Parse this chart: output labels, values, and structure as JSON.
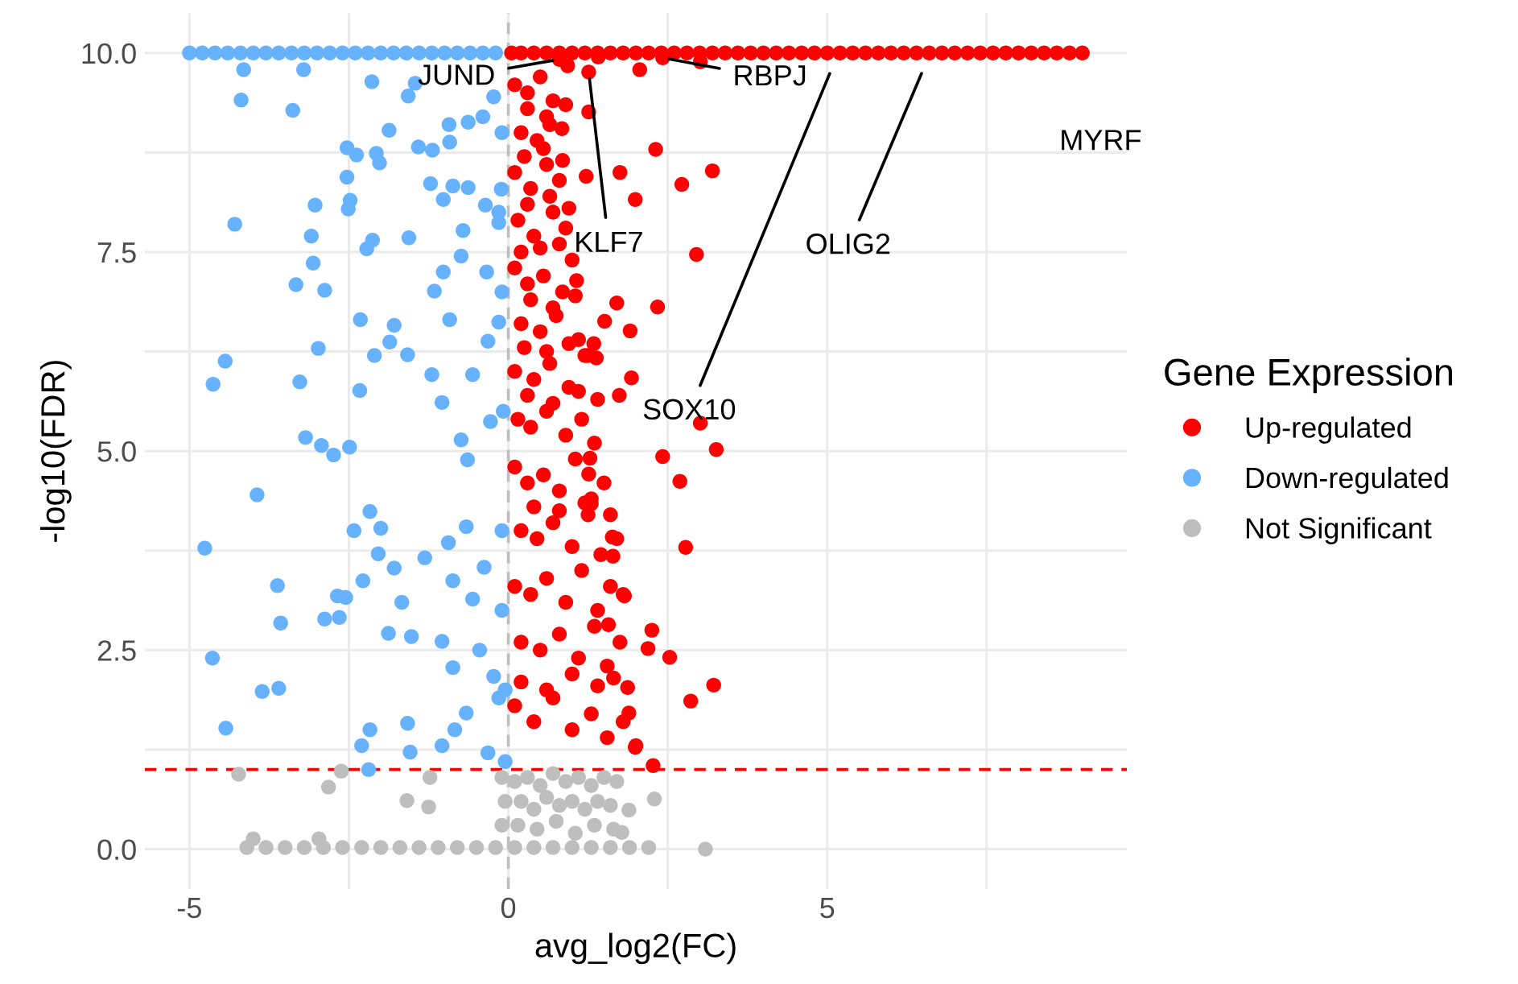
{
  "chart_data": {
    "type": "scatter",
    "xlabel": "avg_log2(FC)",
    "ylabel": "-log10(FDR)",
    "legend_title": "Gene Expression",
    "legend": "right",
    "grid": true,
    "marker": "circle",
    "xlim": [
      -5.7,
      9.7
    ],
    "ylim": [
      -0.5,
      10.5
    ],
    "xticks": [
      -5,
      {
        "value": -2.5,
        "label": null
      },
      0,
      {
        "value": 2.5,
        "label": null
      },
      5,
      {
        "value": 7.5,
        "label": null
      }
    ],
    "yticks": [
      {
        "value": 0,
        "label": "0.0"
      },
      {
        "value": 1.25,
        "label": null
      },
      {
        "value": 2.5,
        "label": "2.5"
      },
      {
        "value": 3.75,
        "label": null
      },
      {
        "value": 5,
        "label": "5.0"
      },
      {
        "value": 6.25,
        "label": null
      },
      {
        "value": 7.5,
        "label": "7.5"
      },
      {
        "value": 8.75,
        "label": null
      },
      {
        "value": 10,
        "label": "10.0"
      }
    ],
    "ref_lines": [
      {
        "axis": "x",
        "value": 0,
        "color": "#bebebe",
        "line_style": "dashed"
      },
      {
        "axis": "y",
        "value": 1,
        "color": "#ff0000",
        "line_style": "dashed"
      }
    ],
    "annotations": [
      {
        "text": "JUND",
        "x": 0.8,
        "y": 9.92
      },
      {
        "text": "RBPJ",
        "x": 2.42,
        "y": 9.94
      },
      {
        "text": "KLF7",
        "x": 1.26,
        "y": 9.76
      },
      {
        "text": "SOX10",
        "x": 5.08,
        "y": 9.82
      },
      {
        "text": "OLIG2",
        "x": 6.52,
        "y": 9.82
      },
      {
        "text": "MYRF",
        "x": 8.2,
        "y": 10.0
      }
    ],
    "series": [
      {
        "name": "Up-regulated",
        "color": "#ff0000",
        "x": [
          0.05,
          0.2,
          0.4,
          0.6,
          0.8,
          1.0,
          1.2,
          1.4,
          1.6,
          1.8,
          2.0,
          2.2,
          2.4,
          2.6,
          2.8,
          3.0,
          3.2,
          3.4,
          3.6,
          3.8,
          4.0,
          4.2,
          4.4,
          4.6,
          4.8,
          5.0,
          5.2,
          5.4,
          5.6,
          5.8,
          6.0,
          6.2,
          6.4,
          6.6,
          6.8,
          7.0,
          7.2,
          7.4,
          7.6,
          7.8,
          8.0,
          8.2,
          8.4,
          8.6,
          8.8,
          9.0,
          0.93,
          1.41,
          2.06,
          3.01,
          1.26,
          2.31,
          1.22,
          1.75,
          2.72,
          3.2,
          1.99,
          2.95,
          1.7,
          2.34,
          1.51,
          1.91,
          1.34,
          1.38,
          1.93,
          1.74,
          3.01,
          0.84,
          1.07,
          3.26,
          2.42,
          2.69,
          2.78,
          1.63,
          1.64,
          1.82,
          2.25,
          2.19,
          2.53,
          3.22,
          2.86,
          2.27,
          1.99,
          1.87,
          1.89,
          1.57,
          1.28,
          1.26,
          1.3,
          0.1,
          0.3,
          0.5,
          0.7,
          0.2,
          0.45,
          0.65,
          0.1,
          0.35,
          0.6,
          0.8,
          0.15,
          0.4,
          0.7,
          0.9,
          0.1,
          0.3,
          0.55,
          0.85,
          1.0,
          0.2,
          0.5,
          0.75,
          1.1,
          0.1,
          0.4,
          0.65,
          0.95,
          1.2,
          0.15,
          0.35,
          0.6,
          0.9,
          1.15,
          1.35,
          0.1,
          0.3,
          0.55,
          0.8,
          1.05,
          1.3,
          1.5,
          0.2,
          0.45,
          0.7,
          1.0,
          1.25,
          1.45,
          1.7,
          0.1,
          0.35,
          0.6,
          0.9,
          1.15,
          1.4,
          1.6,
          1.8,
          0.2,
          0.5,
          0.8,
          1.1,
          1.35,
          1.55,
          1.75,
          0.1,
          0.4,
          0.7,
          1.0,
          1.3,
          1.55,
          1.8,
          2.0,
          1.26,
          0.8,
          2.42,
          0.3,
          0.6,
          0.9,
          0.25,
          0.55,
          0.85,
          0.3,
          0.65,
          0.95,
          0.2,
          0.5,
          0.8,
          0.35,
          0.7,
          1.05,
          0.25,
          0.6,
          0.95,
          1.25,
          0.3,
          0.7,
          1.1,
          1.4,
          0.4,
          0.8,
          1.2,
          1.6,
          0.2,
          0.6,
          1.0,
          1.4,
          1.65
        ],
        "values": [
          10,
          10,
          10,
          10,
          10,
          10,
          10,
          10,
          10,
          10,
          10,
          10,
          10,
          10,
          10,
          10,
          10,
          10,
          10,
          10,
          10,
          10,
          10,
          10,
          10,
          10,
          10,
          10,
          10,
          10,
          10,
          10,
          10,
          10,
          10,
          10,
          10,
          10,
          10,
          10,
          10,
          10,
          10,
          10,
          10,
          10,
          9.84,
          9.95,
          9.79,
          9.89,
          9.26,
          8.79,
          8.45,
          8.5,
          8.35,
          8.52,
          8.16,
          7.47,
          6.86,
          6.81,
          6.63,
          6.51,
          6.35,
          6.17,
          5.92,
          5.7,
          5.35,
          9.05,
          7.14,
          5.02,
          4.93,
          4.62,
          3.79,
          3.92,
          3.68,
          3.18,
          2.75,
          2.52,
          2.41,
          2.06,
          1.86,
          1.05,
          1.28,
          2.03,
          1.71,
          2.82,
          4.91,
          4.71,
          4.34,
          9.6,
          9.5,
          9.7,
          9.4,
          9.0,
          8.9,
          9.1,
          8.5,
          8.3,
          8.6,
          8.4,
          7.9,
          7.7,
          8.0,
          7.8,
          7.3,
          7.1,
          7.2,
          7.0,
          7.4,
          6.6,
          6.5,
          6.7,
          6.4,
          6.0,
          5.9,
          6.1,
          5.8,
          6.2,
          5.4,
          5.3,
          5.5,
          5.2,
          5.4,
          5.1,
          4.8,
          4.6,
          4.7,
          4.5,
          4.9,
          4.4,
          4.6,
          4.0,
          3.9,
          4.1,
          3.8,
          4.2,
          3.7,
          3.9,
          3.3,
          3.2,
          3.4,
          3.1,
          3.5,
          3.0,
          3.3,
          3.2,
          2.6,
          2.5,
          2.7,
          2.4,
          2.8,
          2.3,
          2.6,
          1.8,
          1.6,
          1.9,
          1.5,
          1.7,
          1.4,
          1.6,
          1.3,
          9.76,
          9.92,
          9.94,
          9.3,
          9.2,
          9.35,
          8.7,
          8.8,
          8.65,
          8.1,
          8.2,
          8.05,
          7.5,
          7.55,
          7.6,
          6.9,
          6.8,
          6.95,
          6.3,
          6.25,
          6.35,
          6.2,
          5.7,
          5.6,
          5.75,
          5.65,
          4.3,
          4.25,
          4.35,
          4.2,
          2.1,
          2.0,
          2.2,
          2.05,
          2.15
        ]
      },
      {
        "name": "Down-regulated",
        "color": "#66b2ff",
        "x": [
          -5.0,
          -4.8,
          -4.6,
          -4.4,
          -4.2,
          -4.0,
          -3.8,
          -3.6,
          -3.4,
          -3.2,
          -3.0,
          -2.8,
          -2.6,
          -2.4,
          -2.2,
          -2.0,
          -1.8,
          -1.6,
          -1.4,
          -1.2,
          -1.0,
          -0.8,
          -0.6,
          -0.4,
          -0.2,
          -4.15,
          -3.21,
          -4.19,
          -3.38,
          -2.14,
          -1.46,
          -1.57,
          -1.87,
          -0.93,
          -0.63,
          -0.4,
          -0.23,
          -2.53,
          -2.38,
          -2.07,
          -2.02,
          -1.41,
          -1.19,
          -0.92,
          -2.53,
          -3.03,
          -2.48,
          -2.51,
          -1.22,
          -0.87,
          -0.63,
          -1.02,
          -0.36,
          -0.11,
          -4.29,
          -3.09,
          -2.13,
          -2.22,
          -1.56,
          -0.71,
          -0.15,
          -3.06,
          -3.33,
          -2.88,
          -1.02,
          -0.74,
          -0.34,
          -1.16,
          -2.32,
          -1.79,
          -1.86,
          -0.92,
          -0.32,
          -0.15,
          -4.44,
          -4.63,
          -2.98,
          -3.27,
          -2.1,
          -1.58,
          -2.33,
          -1.2,
          -0.56,
          -1.04,
          -0.28,
          -3.18,
          -0.74,
          -3.94,
          -4.76,
          -3.62,
          -3.57,
          -4.64,
          -3.86,
          -3.6,
          -4.43,
          -2.17,
          -2.42,
          -2.0,
          -2.04,
          -1.79,
          -2.28,
          -2.68,
          -2.55,
          -2.88,
          -2.65,
          -1.67,
          -1.88,
          -1.52,
          -1.31,
          -0.94,
          -0.87,
          -0.38,
          -0.66,
          -1.04,
          -0.87,
          -1.58,
          -2.17,
          -2.3,
          -1.54,
          -1.04,
          -0.84,
          -0.66,
          -0.32,
          -2.19,
          -0.15,
          -0.56,
          -0.64,
          -2.93,
          -2.74,
          -2.49,
          -0.45,
          -0.23,
          -0.1,
          -0.1,
          -0.08,
          -0.1,
          -0.1,
          -0.05,
          -0.05,
          -0.15
        ],
        "values": [
          10,
          10,
          10,
          10,
          10,
          10,
          10,
          10,
          10,
          10,
          10,
          10,
          10,
          10,
          10,
          10,
          10,
          10,
          10,
          10,
          10,
          10,
          10,
          10,
          10,
          9.79,
          9.79,
          9.41,
          9.28,
          9.64,
          9.62,
          9.46,
          9.03,
          9.1,
          9.13,
          9.2,
          9.45,
          8.81,
          8.72,
          8.74,
          8.62,
          8.82,
          8.78,
          8.88,
          8.44,
          8.09,
          8.15,
          8.04,
          8.36,
          8.33,
          8.31,
          8.16,
          8.09,
          8.29,
          7.85,
          7.7,
          7.65,
          7.54,
          7.68,
          7.77,
          7.87,
          7.36,
          7.09,
          7.02,
          7.25,
          7.45,
          7.25,
          7.01,
          6.65,
          6.58,
          6.37,
          6.65,
          6.38,
          6.62,
          6.13,
          5.84,
          6.29,
          5.87,
          6.2,
          6.21,
          5.76,
          5.96,
          5.96,
          5.61,
          5.37,
          5.17,
          5.14,
          4.45,
          3.78,
          3.31,
          2.84,
          2.4,
          1.98,
          2.02,
          1.52,
          4.24,
          4.0,
          4.03,
          3.71,
          3.53,
          3.37,
          3.18,
          3.16,
          2.89,
          2.91,
          3.1,
          2.71,
          2.67,
          3.66,
          3.85,
          3.37,
          3.54,
          4.05,
          2.61,
          2.28,
          1.58,
          1.5,
          1.3,
          1.22,
          1.3,
          1.5,
          1.71,
          1.21,
          1.0,
          1.9,
          3.14,
          4.89,
          5.07,
          4.95,
          5.05,
          2.5,
          2.17,
          9.0,
          7.0,
          5.5,
          4.0,
          3.0,
          2.0,
          1.1,
          8.0
        ]
      },
      {
        "name": "Not Significant",
        "color": "#bebebe",
        "x": [
          -4.23,
          -2.62,
          -2.82,
          -1.59,
          -1.25,
          -1.23,
          -4.0,
          -2.97,
          2.29,
          3.09,
          1.89,
          1.78,
          -4.1,
          -3.8,
          -3.5,
          -3.2,
          -2.9,
          -2.6,
          -2.3,
          -2.0,
          -1.7,
          -1.4,
          -1.1,
          -0.8,
          -0.5,
          -0.2,
          0.1,
          0.4,
          0.7,
          1.0,
          1.3,
          1.6,
          1.9,
          2.2,
          -0.1,
          -0.05,
          -0.1,
          0.1,
          0.3,
          0.5,
          0.7,
          0.9,
          1.1,
          1.3,
          1.5,
          1.7,
          0.2,
          0.4,
          0.6,
          0.8,
          1.0,
          1.2,
          1.4,
          1.6,
          0.15,
          0.45,
          0.75,
          1.05,
          1.35,
          1.65
        ],
        "values": [
          0.94,
          0.98,
          0.78,
          0.61,
          0.53,
          0.9,
          0.13,
          0.13,
          0.63,
          0.0,
          0.49,
          0.21,
          0.02,
          0.02,
          0.02,
          0.02,
          0.02,
          0.02,
          0.02,
          0.02,
          0.02,
          0.02,
          0.02,
          0.02,
          0.02,
          0.02,
          0.02,
          0.02,
          0.02,
          0.02,
          0.02,
          0.02,
          0.02,
          0.02,
          0.9,
          0.6,
          0.3,
          0.85,
          0.9,
          0.8,
          0.95,
          0.85,
          0.9,
          0.8,
          0.9,
          0.85,
          0.6,
          0.5,
          0.65,
          0.55,
          0.6,
          0.5,
          0.6,
          0.55,
          0.3,
          0.25,
          0.35,
          0.2,
          0.3,
          0.25
        ]
      }
    ]
  }
}
